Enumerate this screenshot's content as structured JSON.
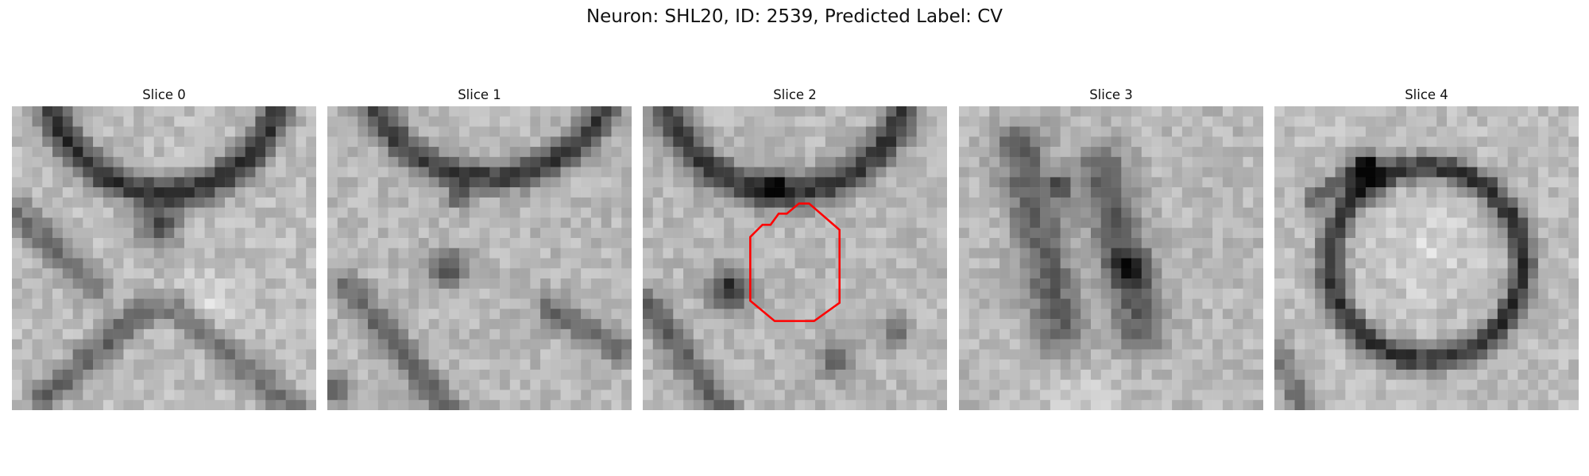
{
  "figure": {
    "title": "Neuron: SHL20, ID: 2539, Predicted Label: CV"
  },
  "panels": [
    {
      "title": "Slice 0"
    },
    {
      "title": "Slice 1"
    },
    {
      "title": "Slice 2"
    },
    {
      "title": "Slice 3"
    },
    {
      "title": "Slice 4"
    }
  ],
  "overlay": {
    "panel": "Slice 2",
    "color": "#ff0000"
  },
  "colormap": "gray"
}
